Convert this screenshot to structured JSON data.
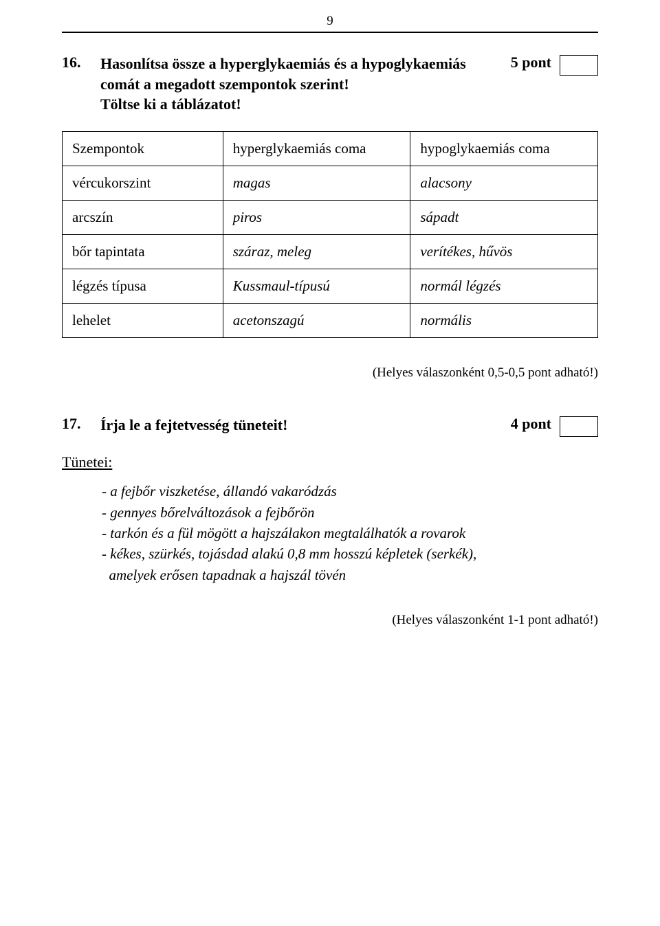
{
  "page_number": "9",
  "q16": {
    "number": "16.",
    "text_line1": "Hasonlítsa össze a hyperglykaemiás és a hypoglykaemiás",
    "text_line2": "comát a megadott szempontok szerint!",
    "text_line3": "Töltse ki a táblázatot!",
    "points": "5 pont"
  },
  "table": {
    "headers": {
      "c1": "Szempontok",
      "c2": "hyperglykaemiás coma",
      "c3": "hypoglykaemiás coma"
    },
    "rows": [
      {
        "c1": "vércukorszint",
        "c2": "magas",
        "c3": "alacsony"
      },
      {
        "c1": "arcszín",
        "c2": "piros",
        "c3": "sápadt"
      },
      {
        "c1": "bőr tapintata",
        "c2": "száraz, meleg",
        "c3": "verítékes, hűvös"
      },
      {
        "c1": "légzés típusa",
        "c2": "Kussmaul-típusú",
        "c3": "normál légzés"
      },
      {
        "c1": "lehelet",
        "c2": "acetonszagú",
        "c3": "normális"
      }
    ]
  },
  "scoring_note_1": "(Helyes válaszonként 0,5-0,5 pont adható!)",
  "q17": {
    "number": "17.",
    "text": "Írja le a fejtetvesség tüneteit!",
    "points": "4 pont"
  },
  "symptoms_heading": "Tünetei:",
  "symptoms": {
    "s1": "- a fejbőr viszketése, állandó vakaródzás",
    "s2": "- gennyes bőrelváltozások a fejbőrön",
    "s3": "- tarkón és a fül mögött a hajszálakon megtalálhatók a rovarok",
    "s4": "- kékes, szürkés, tojásdad alakú 0,8 mm hosszú képletek (serkék),",
    "s4b": "  amelyek erősen tapadnak a hajszál tövén"
  },
  "scoring_note_2": "(Helyes válaszonként 1-1 pont adható!)"
}
